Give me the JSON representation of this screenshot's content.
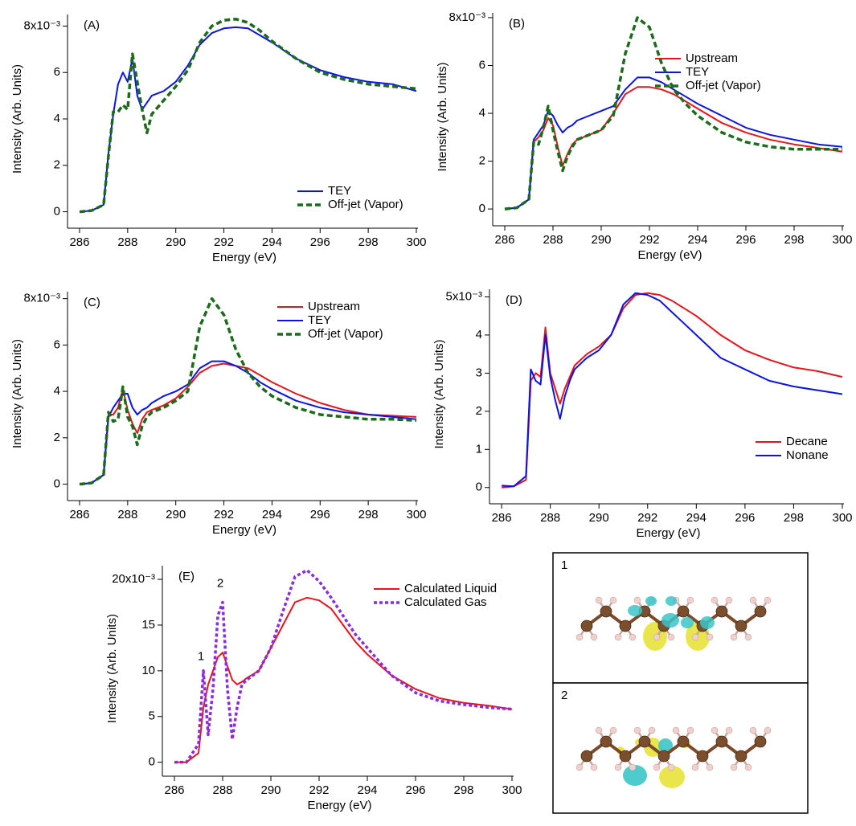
{
  "chart_data": [
    {
      "type": "line",
      "label": "(A)",
      "y_label": "Intensity (Arb. Units)",
      "x_label": "Energy (eV)",
      "xlim": [
        285.7,
        300
      ],
      "xticks": [
        286,
        288,
        290,
        292,
        294,
        296,
        298,
        300
      ],
      "ylim": [
        -0.5,
        8.5
      ],
      "yticks": [
        0,
        2,
        4,
        6,
        {
          "value": 8,
          "label": "8x10⁻³"
        }
      ],
      "legend": "lower right",
      "x": [
        286,
        286.5,
        287,
        287.2,
        287.4,
        287.6,
        287.8,
        288,
        288.2,
        288.4,
        288.6,
        288.8,
        289,
        289.5,
        290,
        290.5,
        291,
        291.5,
        292,
        292.5,
        293,
        293.5,
        294,
        295,
        296,
        297,
        298,
        299,
        300
      ],
      "series": [
        {
          "name": "TEY",
          "color": "#0a14e6",
          "dash": "solid",
          "values": [
            0,
            0.05,
            0.3,
            2.5,
            4.2,
            5.5,
            6.0,
            5.6,
            6.6,
            5.0,
            4.4,
            4.7,
            5.0,
            5.2,
            5.6,
            6.3,
            7.2,
            7.7,
            7.9,
            7.95,
            7.9,
            7.6,
            7.3,
            6.6,
            6.1,
            5.8,
            5.6,
            5.5,
            5.2
          ]
        },
        {
          "name": "Off-jet (Vapor)",
          "color": "#1a6b1a",
          "dash": "dashed",
          "values": [
            0,
            0.05,
            0.3,
            2.4,
            4.3,
            4.3,
            4.6,
            4.4,
            6.8,
            5.6,
            4.4,
            3.4,
            4.2,
            4.8,
            5.4,
            6.1,
            7.3,
            8.0,
            8.25,
            8.3,
            8.15,
            7.8,
            7.35,
            6.6,
            6.0,
            5.7,
            5.5,
            5.4,
            5.3
          ]
        }
      ]
    },
    {
      "type": "line",
      "label": "(B)",
      "y_label": "Intensity (Arb. Units)",
      "x_label": "Energy (eV)",
      "xlim": [
        285.7,
        300
      ],
      "xticks": [
        286,
        288,
        290,
        292,
        294,
        296,
        298,
        300
      ],
      "ylim": [
        -0.5,
        8.2
      ],
      "yticks": [
        0,
        2,
        4,
        6,
        {
          "value": 8,
          "label": "8x10⁻³"
        }
      ],
      "legend": "upper right",
      "x": [
        286,
        286.5,
        287,
        287.2,
        287.4,
        287.6,
        287.8,
        288,
        288.2,
        288.4,
        288.6,
        288.8,
        289,
        289.5,
        290,
        290.5,
        291,
        291.5,
        292,
        292.5,
        293,
        293.5,
        294,
        295,
        296,
        297,
        298,
        299,
        300
      ],
      "series": [
        {
          "name": "Upstream",
          "color": "#e8141b",
          "dash": "solid",
          "values": [
            0,
            0.05,
            0.4,
            2.8,
            3.0,
            3.3,
            3.8,
            3.5,
            2.6,
            1.8,
            2.3,
            2.7,
            2.9,
            3.1,
            3.3,
            4.0,
            4.8,
            5.1,
            5.1,
            5.0,
            4.8,
            4.5,
            4.2,
            3.6,
            3.2,
            2.9,
            2.7,
            2.55,
            2.4
          ]
        },
        {
          "name": "TEY",
          "color": "#0a14e6",
          "dash": "solid",
          "values": [
            0,
            0.05,
            0.4,
            2.9,
            3.2,
            3.5,
            4.1,
            3.9,
            3.5,
            3.2,
            3.4,
            3.5,
            3.7,
            3.9,
            4.1,
            4.3,
            5.0,
            5.5,
            5.5,
            5.3,
            5.0,
            4.7,
            4.4,
            3.9,
            3.4,
            3.1,
            2.9,
            2.7,
            2.6
          ]
        },
        {
          "name": "Off-jet (Vapor)",
          "color": "#1a6b1a",
          "dash": "dashed",
          "values": [
            0,
            0.05,
            0.4,
            2.8,
            2.7,
            3.4,
            4.3,
            3.3,
            2.4,
            1.6,
            2.2,
            2.6,
            2.9,
            3.1,
            3.3,
            3.9,
            6.5,
            8.0,
            7.6,
            6.1,
            5.0,
            4.4,
            3.9,
            3.2,
            2.8,
            2.6,
            2.5,
            2.5,
            2.5
          ]
        }
      ]
    },
    {
      "type": "line",
      "label": "(C)",
      "y_label": "Intensity (Arb. Units)",
      "x_label": "Energy (eV)",
      "xlim": [
        285.7,
        300
      ],
      "xticks": [
        286,
        288,
        290,
        292,
        294,
        296,
        298,
        300
      ],
      "ylim": [
        -0.5,
        8.3
      ],
      "yticks": [
        0,
        2,
        4,
        6,
        {
          "value": 8,
          "label": "8x10⁻³"
        }
      ],
      "legend": "upper right",
      "x": [
        286,
        286.5,
        287,
        287.2,
        287.4,
        287.6,
        287.8,
        288,
        288.2,
        288.4,
        288.6,
        288.8,
        289,
        289.5,
        290,
        290.5,
        291,
        291.5,
        292,
        292.5,
        293,
        293.5,
        294,
        295,
        296,
        297,
        298,
        299,
        300
      ],
      "series": [
        {
          "name": "Upstream",
          "color": "#e8141b",
          "dash": "solid",
          "values": [
            0,
            0.05,
            0.4,
            3.0,
            3.0,
            3.3,
            4.1,
            3.2,
            2.6,
            2.2,
            2.8,
            3.1,
            3.2,
            3.4,
            3.7,
            4.2,
            4.8,
            5.1,
            5.2,
            5.1,
            5.0,
            4.7,
            4.4,
            3.9,
            3.5,
            3.2,
            3.0,
            2.95,
            2.9
          ]
        },
        {
          "name": "TEY",
          "color": "#0a14e6",
          "dash": "solid",
          "values": [
            0,
            0.05,
            0.4,
            2.9,
            3.3,
            3.6,
            3.9,
            3.9,
            3.3,
            3.0,
            3.2,
            3.3,
            3.5,
            3.8,
            4.0,
            4.3,
            5.0,
            5.3,
            5.3,
            5.1,
            4.8,
            4.4,
            4.1,
            3.6,
            3.3,
            3.1,
            3.0,
            2.9,
            2.8
          ]
        },
        {
          "name": "Off-jet (Vapor)",
          "color": "#1a6b1a",
          "dash": "dashed",
          "values": [
            0,
            0.05,
            0.4,
            3.1,
            2.7,
            2.8,
            4.2,
            2.9,
            2.5,
            1.7,
            2.5,
            2.9,
            3.1,
            3.3,
            3.6,
            4.0,
            6.8,
            8.0,
            7.3,
            5.8,
            4.8,
            4.2,
            3.8,
            3.3,
            3.0,
            2.9,
            2.8,
            2.8,
            2.75
          ]
        }
      ]
    },
    {
      "type": "line",
      "label": "(D)",
      "y_label": "Intensity (Arb. Units)",
      "x_label": "Energy (eV)",
      "xlim": [
        285.7,
        300
      ],
      "xticks": [
        286,
        288,
        290,
        292,
        294,
        296,
        298,
        300
      ],
      "ylim": [
        -0.3,
        5.2
      ],
      "yticks": [
        0,
        1,
        2,
        3,
        4,
        {
          "value": 5,
          "label": "5x10⁻³"
        }
      ],
      "legend": "lower right",
      "x": [
        286,
        286.5,
        287,
        287.2,
        287.4,
        287.6,
        287.8,
        288,
        288.2,
        288.4,
        288.6,
        288.8,
        289,
        289.5,
        290,
        290.5,
        291,
        291.5,
        292,
        292.5,
        293,
        293.5,
        294,
        295,
        296,
        297,
        298,
        299,
        300
      ],
      "series": [
        {
          "name": "Decane",
          "color": "#e8141b",
          "dash": "solid",
          "values": [
            0,
            0.03,
            0.2,
            2.8,
            3.0,
            2.9,
            4.2,
            3.0,
            2.6,
            2.2,
            2.6,
            2.9,
            3.2,
            3.5,
            3.7,
            4.0,
            4.7,
            5.05,
            5.1,
            5.05,
            4.9,
            4.7,
            4.5,
            4.0,
            3.6,
            3.35,
            3.15,
            3.05,
            2.9
          ]
        },
        {
          "name": "Nonane",
          "color": "#0a14e6",
          "dash": "solid",
          "values": [
            0.05,
            0.03,
            0.3,
            3.1,
            2.8,
            2.7,
            4.0,
            2.9,
            2.3,
            1.8,
            2.4,
            2.8,
            3.1,
            3.4,
            3.6,
            4.0,
            4.8,
            5.1,
            5.05,
            4.9,
            4.6,
            4.3,
            4.0,
            3.4,
            3.1,
            2.8,
            2.65,
            2.55,
            2.45
          ]
        }
      ]
    },
    {
      "type": "line",
      "label": "(E)",
      "y_label": "Intensity (Arb. Units)",
      "x_label": "Energy (eV)",
      "xlim": [
        285.7,
        300
      ],
      "xticks": [
        286,
        288,
        290,
        292,
        294,
        296,
        298,
        300
      ],
      "ylim": [
        -1,
        21.5
      ],
      "yticks": [
        0,
        5,
        10,
        15,
        {
          "value": 20,
          "label": "20x10⁻³"
        }
      ],
      "legend": "upper right",
      "annotations": [
        "1",
        "2"
      ],
      "x": [
        286,
        286.5,
        287,
        287.2,
        287.4,
        287.6,
        287.8,
        288,
        288.2,
        288.4,
        288.6,
        288.8,
        289,
        289.5,
        290,
        290.5,
        291,
        291.5,
        292,
        292.5,
        293,
        293.5,
        294,
        295,
        296,
        297,
        298,
        299,
        300
      ],
      "series": [
        {
          "name": "Calculated Liquid",
          "color": "#e8141b",
          "dash": "solid",
          "values": [
            0,
            0,
            1.0,
            6,
            8.5,
            10,
            11.5,
            12,
            10.5,
            9,
            8.5,
            8.8,
            9.2,
            10,
            12.5,
            15,
            17.5,
            18,
            17.7,
            16.8,
            15,
            13.2,
            11.8,
            9.5,
            8,
            7,
            6.5,
            6.2,
            5.8
          ]
        },
        {
          "name": "Calculated Gas",
          "color": "#8a2be2",
          "dash": "dotted",
          "values": [
            0,
            0,
            2,
            10,
            3,
            8,
            16,
            17.5,
            8,
            2.5,
            6,
            8.5,
            9,
            10,
            12.5,
            16.5,
            20.3,
            21,
            19.8,
            18,
            16,
            14,
            12.5,
            9.5,
            7.6,
            6.7,
            6.3,
            6.0,
            5.8
          ]
        }
      ]
    }
  ],
  "insets": [
    "1",
    "2"
  ]
}
